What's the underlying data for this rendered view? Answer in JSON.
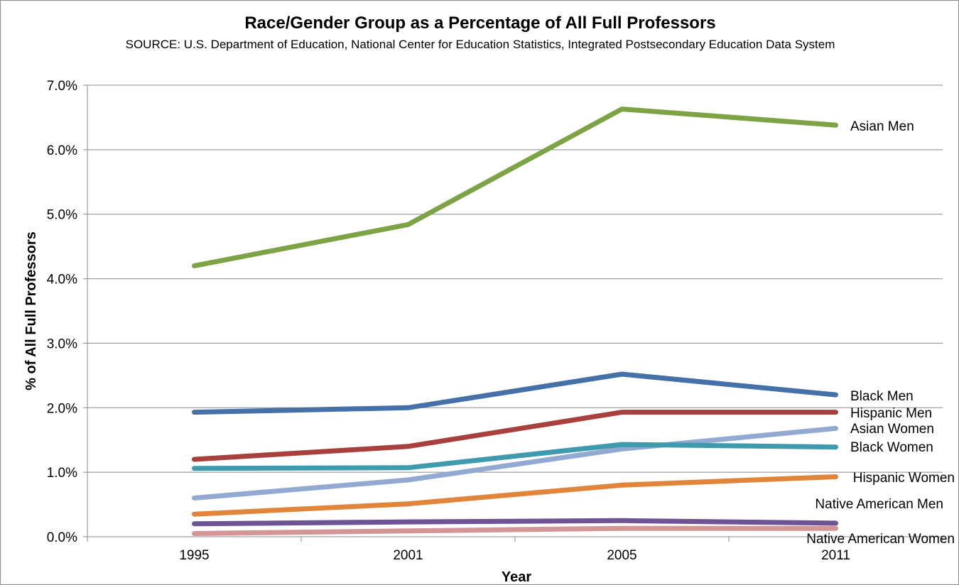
{
  "chart_data": {
    "type": "line",
    "title": "Race/Gender Group as a Percentage of All Full Professors",
    "subtitle": "SOURCE: U.S. Department of Education, National Center for Education Statistics, Integrated Postsecondary Education Data System",
    "xlabel": "Year",
    "ylabel": "% of All Full Professors",
    "categories": [
      "1995",
      "2001",
      "2005",
      "2011"
    ],
    "ylim": [
      0,
      7
    ],
    "yticks": [
      "0.0%",
      "1.0%",
      "2.0%",
      "3.0%",
      "4.0%",
      "5.0%",
      "6.0%",
      "7.0%"
    ],
    "grid": true,
    "legend": "inline labels at right end of lines",
    "series": [
      {
        "name": "Asian Men",
        "values": [
          4.2,
          4.84,
          6.63,
          6.38
        ],
        "color": "#7ea346"
      },
      {
        "name": "Black Men",
        "values": [
          1.93,
          2.0,
          2.52,
          2.2
        ],
        "color": "#4570a8"
      },
      {
        "name": "Hispanic Men",
        "values": [
          1.2,
          1.4,
          1.93,
          1.93
        ],
        "color": "#a8403d"
      },
      {
        "name": "Asian Women",
        "values": [
          0.6,
          0.88,
          1.36,
          1.68
        ],
        "color": "#92a9d2"
      },
      {
        "name": "Black Women",
        "values": [
          1.06,
          1.07,
          1.43,
          1.39
        ],
        "color": "#3e9aac"
      },
      {
        "name": "Hispanic Women",
        "values": [
          0.35,
          0.51,
          0.8,
          0.93
        ],
        "color": "#e0853a"
      },
      {
        "name": "Native American Men",
        "values": [
          0.2,
          0.23,
          0.25,
          0.21
        ],
        "color": "#6e5494"
      },
      {
        "name": "Native American Women",
        "values": [
          0.05,
          0.09,
          0.13,
          0.13
        ],
        "color": "#d39595"
      }
    ]
  }
}
